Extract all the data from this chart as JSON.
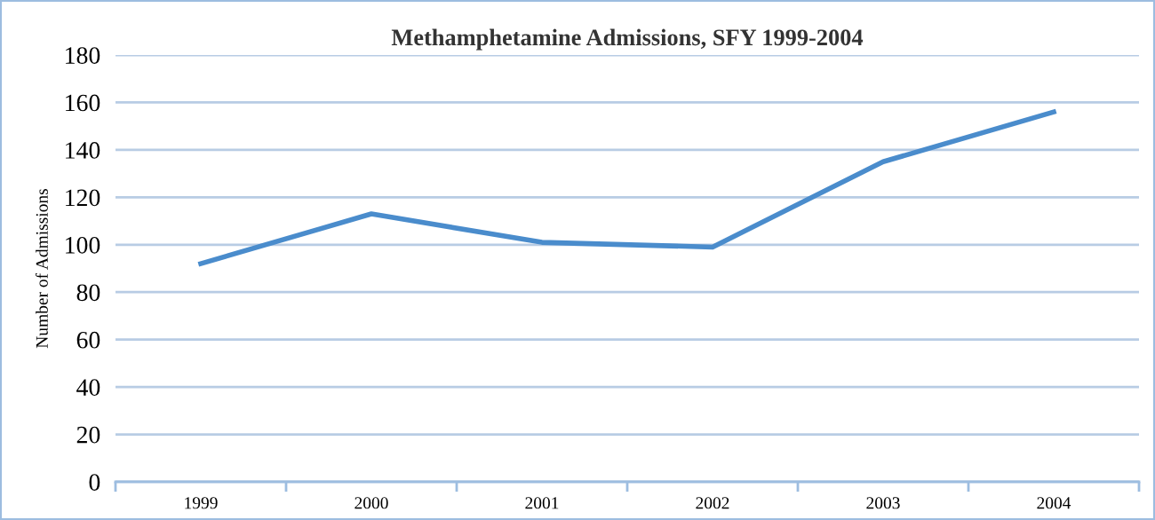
{
  "chart_data": {
    "type": "line",
    "title": "Methamphetamine Admissions, SFY 1999-2004",
    "ylabel": "Number of Admissions",
    "categories": [
      "1999",
      "2000",
      "2001",
      "2002",
      "2003",
      "2004"
    ],
    "series": [
      {
        "color": "#4a8ccc",
        "values": [
          92,
          113,
          101,
          99,
          135,
          156
        ]
      }
    ],
    "ylim": [
      0,
      180
    ],
    "yticks": [
      0,
      20,
      40,
      60,
      80,
      100,
      120,
      140,
      160,
      180
    ],
    "grid": "y",
    "legend": false,
    "marker": "none",
    "line_style": "solid"
  }
}
